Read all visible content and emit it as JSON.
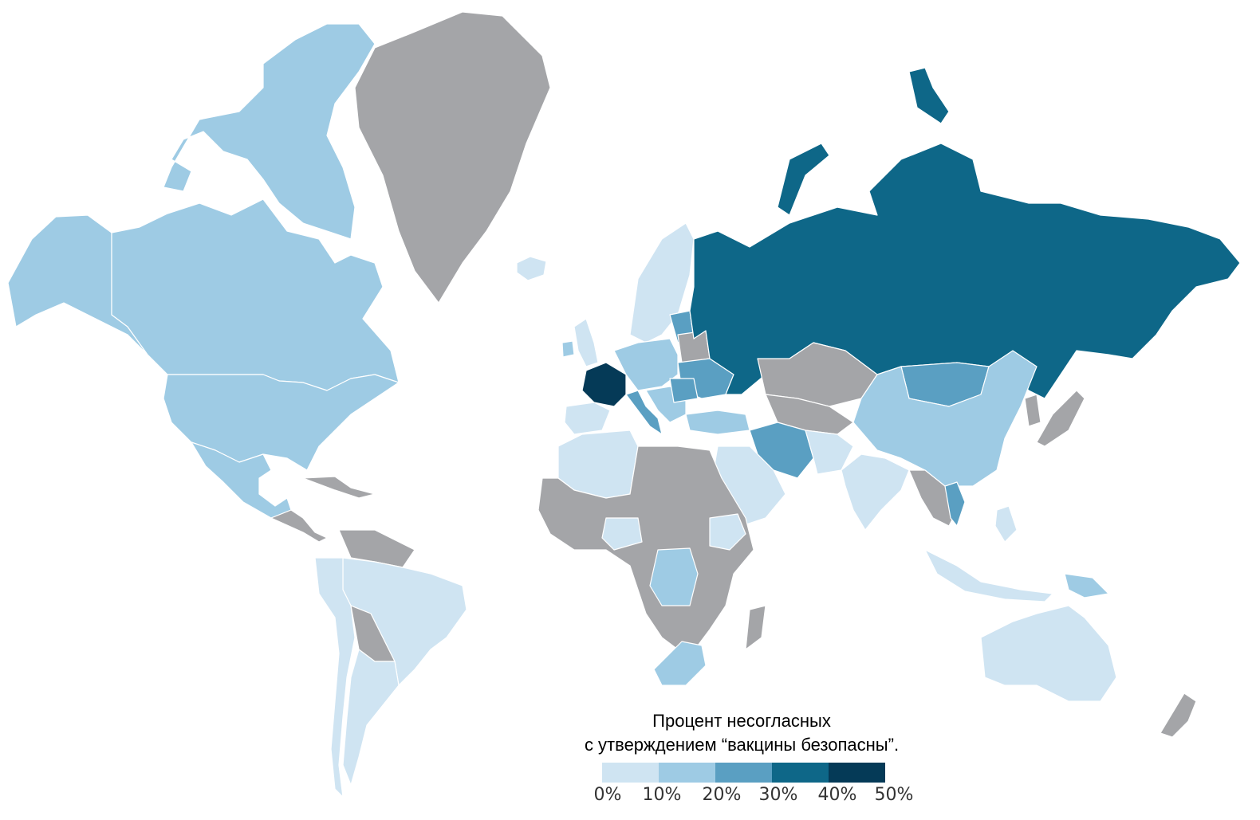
{
  "legend": {
    "title_line1": "Процент несогласных",
    "title_line2": "с утверждением “вакцины безопасны”.",
    "ticks": [
      "0%",
      "10%",
      "20%",
      "30%",
      "40%",
      "50%"
    ],
    "colors": [
      "#cfe4f2",
      "#9ecbe4",
      "#5a9fc2",
      "#0e6788",
      "#053a57"
    ]
  },
  "map": {
    "no_data_color": "#a4a5a8",
    "border_color": "#ffffff",
    "regions": [
      {
        "name": "Greenland",
        "bin": "no-data"
      },
      {
        "name": "Canada",
        "bin": "10-20%"
      },
      {
        "name": "United States",
        "bin": "10-20%"
      },
      {
        "name": "Alaska",
        "bin": "10-20%"
      },
      {
        "name": "Mexico",
        "bin": "10-20%"
      },
      {
        "name": "South America (most)",
        "bin": "0-10%"
      },
      {
        "name": "Russia",
        "bin": "30-40%"
      },
      {
        "name": "France",
        "bin": "40-50%"
      },
      {
        "name": "Mongolia",
        "bin": "20-30%"
      },
      {
        "name": "Iran",
        "bin": "20-30%"
      },
      {
        "name": "China",
        "bin": "10-20%"
      },
      {
        "name": "India",
        "bin": "0-10%"
      },
      {
        "name": "Australia",
        "bin": "0-10%"
      },
      {
        "name": "DR Congo",
        "bin": "10-20%"
      },
      {
        "name": "South Africa",
        "bin": "10-20%"
      },
      {
        "name": "Kazakhstan",
        "bin": "no-data"
      },
      {
        "name": "Africa (most)",
        "bin": "no-data"
      }
    ]
  }
}
